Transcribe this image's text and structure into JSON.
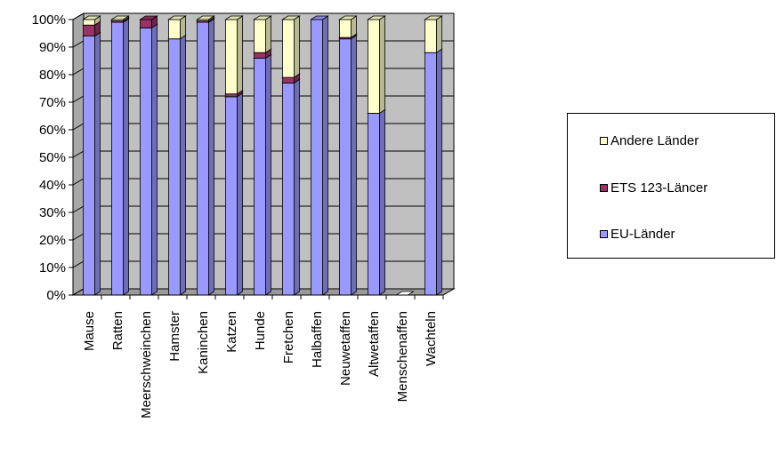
{
  "chart_data": {
    "type": "bar",
    "stacked": "percent",
    "categories": [
      "Mause",
      "Ratten",
      "Meerschweinchen",
      "Hamster",
      "Kaninchen",
      "Katzen",
      "Hunde",
      "Fretchen",
      "Halbaffen",
      "Neuwetaffen",
      "Altwetaffen",
      "Menschenaffen",
      "Wachteln"
    ],
    "series": [
      {
        "name": "EU-Länder",
        "color": "#9999ff",
        "values": [
          94,
          99,
          97,
          93,
          99,
          72,
          86,
          77,
          100,
          93,
          66,
          0,
          88
        ]
      },
      {
        "name": "ETS 123-Läncer",
        "color": "#993366",
        "values": [
          4,
          0.5,
          3,
          0,
          0.5,
          1,
          2,
          2,
          0,
          0.5,
          0,
          0,
          0
        ]
      },
      {
        "name": "Andere Länder",
        "color": "#ffffcc",
        "values": [
          2,
          0.5,
          0,
          7,
          0.5,
          27,
          12,
          21,
          0,
          6.5,
          34,
          0,
          12
        ]
      }
    ],
    "yticks": [
      "0%",
      "10%",
      "20%",
      "30%",
      "40%",
      "50%",
      "60%",
      "70%",
      "80%",
      "90%",
      "100%"
    ],
    "ylim": [
      0,
      100
    ],
    "grid": true,
    "plot_background": "#c0c0c0",
    "legend_position": "right",
    "legend": [
      "Andere Länder",
      "ETS 123-Läncer",
      "EU-Länder"
    ]
  }
}
